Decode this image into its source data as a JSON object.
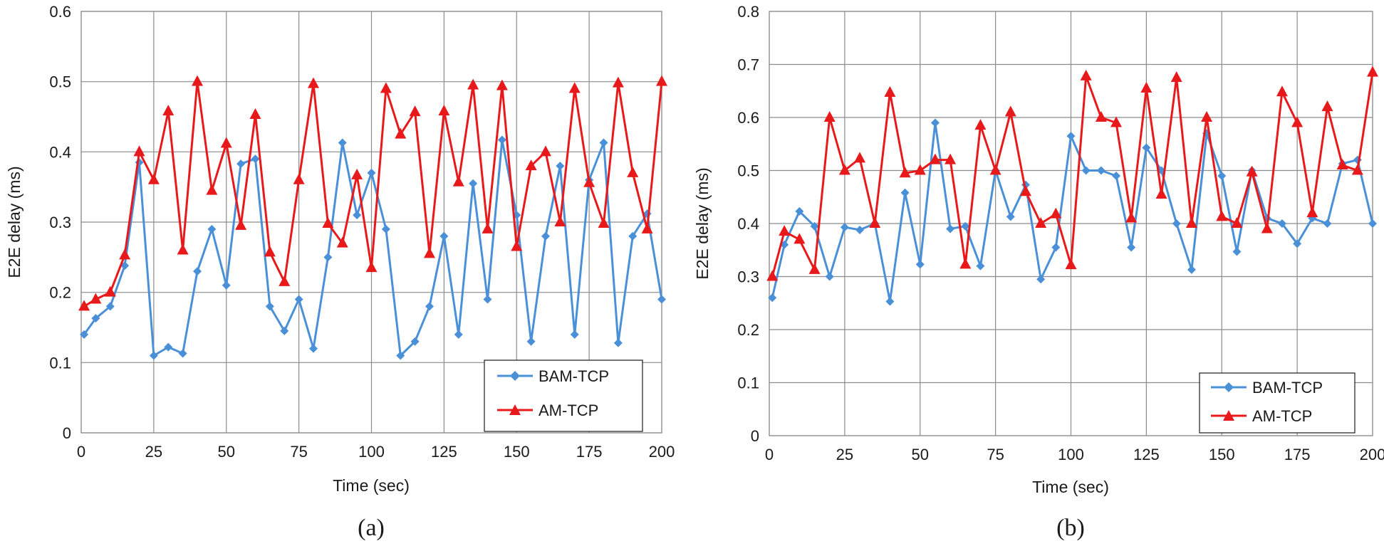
{
  "chart_data": [
    {
      "type": "line",
      "panel_label": "(a)",
      "xlabel": "Time (sec)",
      "ylabel": "E2E delay (ms)",
      "xlim": [
        0,
        200
      ],
      "ylim": [
        0,
        0.6
      ],
      "x_ticks": [
        0,
        25,
        50,
        75,
        100,
        125,
        150,
        175,
        200
      ],
      "y_ticks": [
        0,
        0.1,
        0.2,
        0.3,
        0.4,
        0.5,
        0.6
      ],
      "y_tick_labels": [
        "0",
        "0.1",
        "0.2",
        "0.3",
        "0.4",
        "0.5",
        "0.6"
      ],
      "grid": true,
      "legend_position": "bottom-right",
      "x": [
        1,
        5,
        10,
        15,
        20,
        25,
        30,
        35,
        40,
        45,
        50,
        55,
        60,
        65,
        70,
        75,
        80,
        85,
        90,
        95,
        100,
        105,
        110,
        115,
        120,
        125,
        130,
        135,
        140,
        145,
        150,
        155,
        160,
        165,
        170,
        175,
        180,
        185,
        190,
        195,
        200
      ],
      "series": [
        {
          "name": "BAM-TCP",
          "color": "#4a90d9",
          "marker": "diamond",
          "values": [
            0.14,
            0.163,
            0.18,
            0.238,
            0.385,
            0.11,
            0.122,
            0.113,
            0.23,
            0.29,
            0.21,
            0.383,
            0.39,
            0.18,
            0.145,
            0.19,
            0.12,
            0.25,
            0.413,
            0.31,
            0.37,
            0.29,
            0.11,
            0.13,
            0.18,
            0.28,
            0.14,
            0.355,
            0.19,
            0.417,
            0.31,
            0.13,
            0.28,
            0.38,
            0.14,
            0.36,
            0.413,
            0.128,
            0.28,
            0.312,
            0.19
          ]
        },
        {
          "name": "AM-TCP",
          "color": "#e8191b",
          "marker": "triangle",
          "values": [
            0.18,
            0.19,
            0.2,
            0.253,
            0.4,
            0.36,
            0.458,
            0.26,
            0.5,
            0.345,
            0.412,
            0.295,
            0.453,
            0.257,
            0.215,
            0.36,
            0.497,
            0.298,
            0.27,
            0.367,
            0.235,
            0.49,
            0.425,
            0.457,
            0.255,
            0.458,
            0.357,
            0.495,
            0.29,
            0.494,
            0.265,
            0.38,
            0.4,
            0.3,
            0.49,
            0.356,
            0.298,
            0.498,
            0.37,
            0.29,
            0.5
          ]
        }
      ]
    },
    {
      "type": "line",
      "panel_label": "(b)",
      "xlabel": "Time (sec)",
      "ylabel": "E2E delay (ms)",
      "xlim": [
        0,
        200
      ],
      "ylim": [
        0,
        0.8
      ],
      "x_ticks": [
        0,
        25,
        50,
        75,
        100,
        125,
        150,
        175,
        200
      ],
      "y_ticks": [
        0,
        0.1,
        0.2,
        0.3,
        0.4,
        0.5,
        0.6,
        0.7,
        0.8
      ],
      "y_tick_labels": [
        "0",
        "0.1",
        "0.2",
        "0.3",
        "0.4",
        "0.5",
        "0.6",
        "0.7",
        "0.8"
      ],
      "grid": true,
      "legend_position": "bottom-right",
      "x": [
        1,
        5,
        10,
        15,
        20,
        25,
        30,
        35,
        40,
        45,
        50,
        55,
        60,
        65,
        70,
        75,
        80,
        85,
        90,
        95,
        100,
        105,
        110,
        115,
        120,
        125,
        130,
        135,
        140,
        145,
        150,
        155,
        160,
        165,
        170,
        175,
        180,
        185,
        190,
        195,
        200
      ],
      "series": [
        {
          "name": "BAM-TCP",
          "color": "#4a90d9",
          "marker": "diamond",
          "values": [
            0.26,
            0.36,
            0.423,
            0.395,
            0.3,
            0.393,
            0.388,
            0.4,
            0.253,
            0.458,
            0.323,
            0.59,
            0.39,
            0.395,
            0.32,
            0.5,
            0.413,
            0.473,
            0.295,
            0.355,
            0.565,
            0.5,
            0.5,
            0.49,
            0.355,
            0.543,
            0.5,
            0.4,
            0.313,
            0.57,
            0.49,
            0.347,
            0.5,
            0.41,
            0.4,
            0.362,
            0.41,
            0.4,
            0.513,
            0.52,
            0.4
          ]
        },
        {
          "name": "AM-TCP",
          "color": "#e8191b",
          "marker": "triangle",
          "values": [
            0.3,
            0.385,
            0.37,
            0.313,
            0.6,
            0.5,
            0.523,
            0.4,
            0.647,
            0.495,
            0.5,
            0.52,
            0.52,
            0.323,
            0.585,
            0.5,
            0.61,
            0.46,
            0.4,
            0.418,
            0.322,
            0.678,
            0.6,
            0.59,
            0.41,
            0.655,
            0.455,
            0.675,
            0.4,
            0.6,
            0.413,
            0.4,
            0.497,
            0.39,
            0.648,
            0.59,
            0.42,
            0.62,
            0.51,
            0.5,
            0.685
          ]
        }
      ]
    }
  ]
}
